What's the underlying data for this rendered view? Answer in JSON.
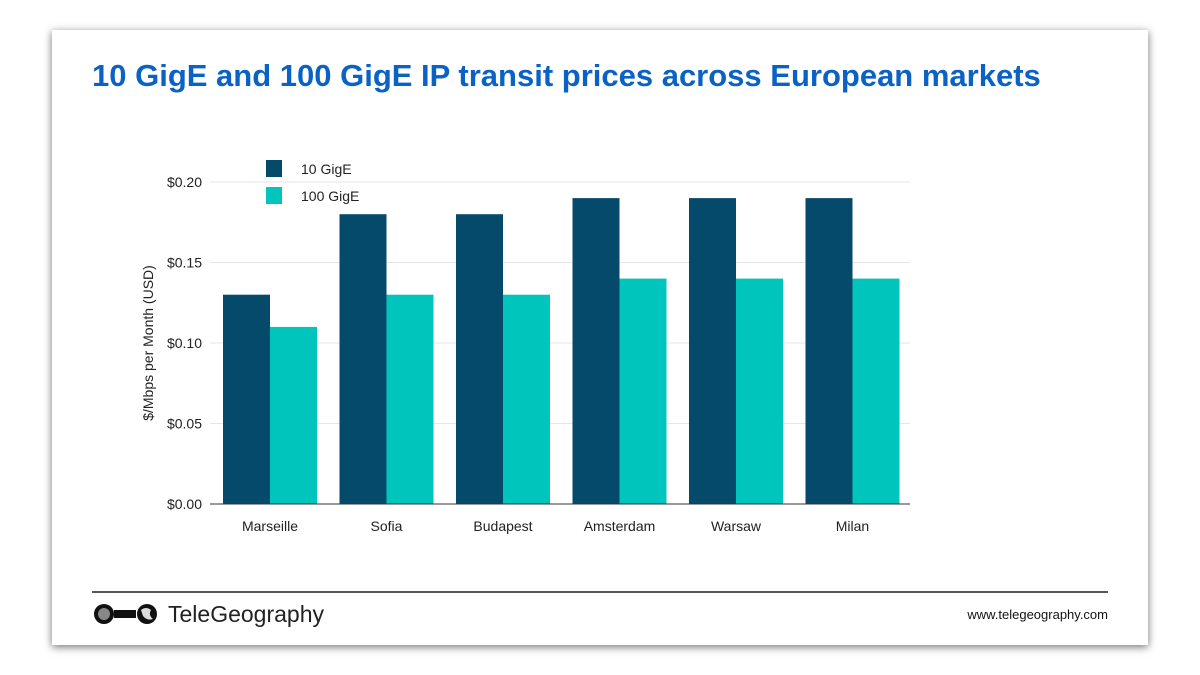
{
  "title": "10 GigE and 100 GigE IP transit prices across European markets",
  "footer": {
    "brand": "TeleGeography",
    "url": "www.telegeography.com"
  },
  "colors": {
    "title": "#0a62c4",
    "series_10": "#064a6b",
    "series_100": "#00c5bc"
  },
  "chart_data": {
    "type": "bar",
    "title": "",
    "xlabel": "",
    "ylabel": "$/Mbps per Month (USD)",
    "ylim": [
      0,
      0.2
    ],
    "yticks": [
      "$0.00",
      "$0.05",
      "$0.10",
      "$0.15",
      "$0.20"
    ],
    "grid": true,
    "legend": "top-left",
    "categories": [
      "Marseille",
      "Sofia",
      "Budapest",
      "Amsterdam",
      "Warsaw",
      "Milan"
    ],
    "series": [
      {
        "name": "10 GigE",
        "color": "#064a6b",
        "values": [
          0.13,
          0.18,
          0.18,
          0.19,
          0.19,
          0.19
        ]
      },
      {
        "name": "100 GigE",
        "color": "#00c5bc",
        "values": [
          0.11,
          0.13,
          0.13,
          0.14,
          0.14,
          0.14
        ]
      }
    ]
  }
}
